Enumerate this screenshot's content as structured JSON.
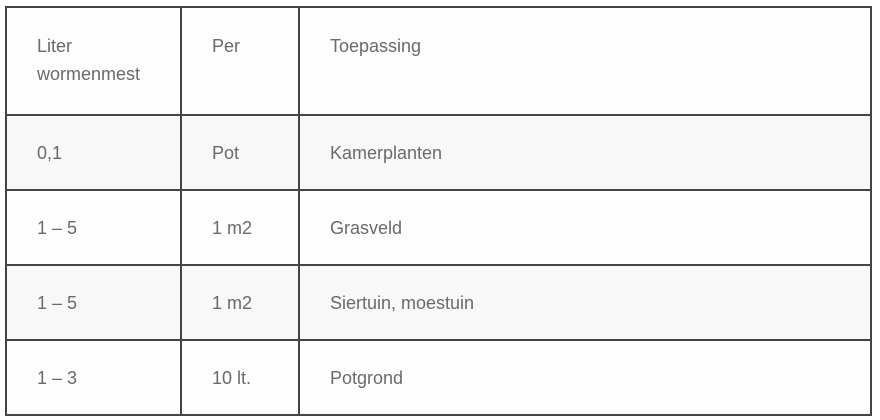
{
  "table": {
    "headers": [
      "Liter wormenmest",
      "Per",
      "Toepassing"
    ],
    "rows": [
      [
        "0,1",
        "Pot",
        "Kamerplanten"
      ],
      [
        "1 – 5",
        "1 m2",
        "Grasveld"
      ],
      [
        "1 – 5",
        "1 m2",
        "Siertuin, moestuin"
      ],
      [
        "1 – 3",
        "10 lt.",
        "Potgrond"
      ]
    ]
  }
}
